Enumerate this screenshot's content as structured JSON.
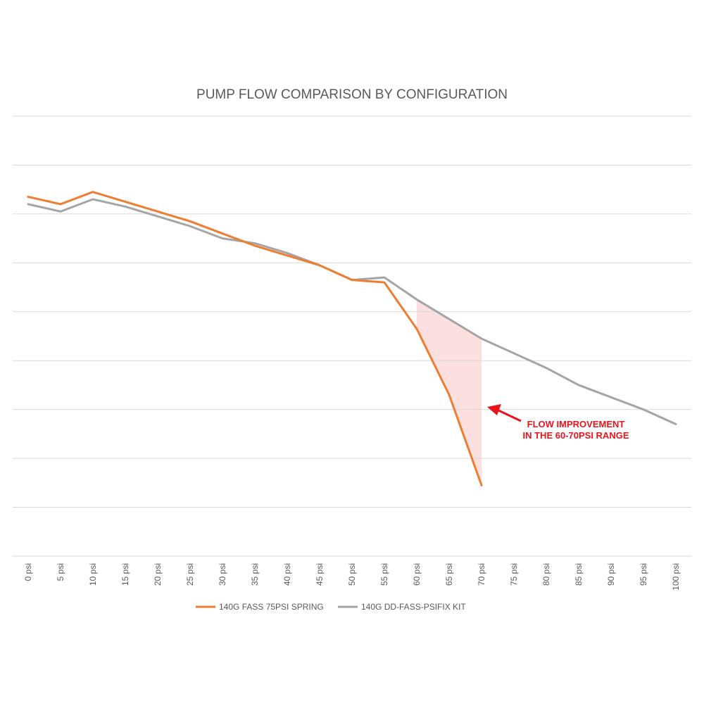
{
  "chart_data": {
    "type": "line",
    "title": "PUMP FLOW COMPARISON BY CONFIGURATION",
    "xlabel": "",
    "ylabel": "",
    "categories": [
      "0 psi",
      "5 psi",
      "10 psi",
      "15 psi",
      "20 psi",
      "25 psi",
      "30 psi",
      "35 psi",
      "40 psi",
      "45 psi",
      "50 psi",
      "55 psi",
      "60 psi",
      "65 psi",
      "70 psi",
      "75 psi",
      "80 psi",
      "85 psi",
      "90 psi",
      "95 psi",
      "100 psi"
    ],
    "x": [
      0,
      5,
      10,
      15,
      20,
      25,
      30,
      35,
      40,
      45,
      50,
      55,
      60,
      65,
      70,
      75,
      80,
      85,
      90,
      95,
      100
    ],
    "ylim": [
      0,
      9
    ],
    "grid": true,
    "legend_position": "bottom",
    "series": [
      {
        "name": "140G FASS 75PSI SPRING",
        "color": "#ed7d31",
        "values": [
          7.35,
          7.2,
          7.45,
          7.25,
          7.05,
          6.85,
          6.6,
          6.35,
          6.15,
          5.95,
          5.65,
          5.6,
          4.65,
          3.3,
          1.45,
          null,
          null,
          null,
          null,
          null,
          null
        ]
      },
      {
        "name": "140G DD-FASS-PSIFIX KIT",
        "color": "#a5a5a5",
        "values": [
          7.2,
          7.05,
          7.3,
          7.15,
          6.95,
          6.75,
          6.5,
          6.4,
          6.2,
          5.95,
          5.65,
          5.7,
          5.25,
          4.85,
          4.45,
          4.15,
          3.85,
          3.5,
          3.25,
          3.0,
          2.7
        ]
      }
    ],
    "shaded_region": {
      "x_from": 60,
      "x_to": 70,
      "color": "#fcdadb"
    },
    "annotation": {
      "lines": [
        "FLOW IMPROVEMENT",
        "IN THE 60-70PSI RANGE"
      ],
      "color": "#e8141c",
      "arrow_to_x": 70
    }
  }
}
